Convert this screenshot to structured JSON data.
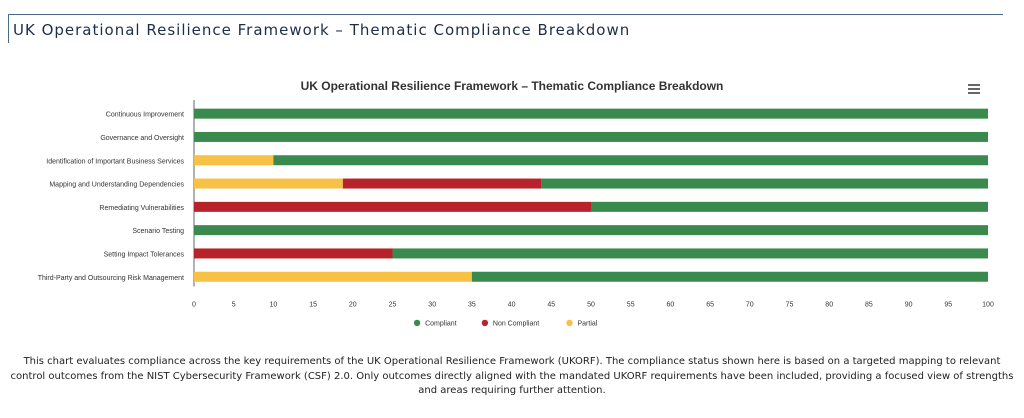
{
  "page": {
    "title": "UK Operational Resilience Framework – Thematic Compliance Breakdown",
    "description": "This chart evaluates compliance across the key requirements of the UK Operational Resilience Framework (UKORF). The compliance status shown here is based on a targeted mapping to relevant control outcomes from the NIST Cybersecurity Framework (CSF) 2.0. Only outcomes directly aligned with the mandated UKORF requirements have been included, providing a focused view of strengths and areas requiring further attention."
  },
  "chart_data": {
    "type": "bar",
    "orientation": "horizontal",
    "stacked": true,
    "title": "UK Operational Resilience Framework – Thematic Compliance Breakdown",
    "xlabel": "",
    "ylabel": "",
    "xlim": [
      0,
      100
    ],
    "x_ticks": [
      0,
      5,
      10,
      15,
      20,
      25,
      30,
      35,
      40,
      45,
      50,
      55,
      60,
      65,
      70,
      75,
      80,
      85,
      90,
      95,
      100
    ],
    "categories": [
      "Continuous Improvement",
      "Governance and Oversight",
      "Identification of Important Business Services",
      "Mapping and Understanding Dependencies",
      "Remediating Vulnerabilities",
      "Scenario Testing",
      "Setting Impact Tolerances",
      "Third-Party and Outsourcing Risk Management"
    ],
    "stack_order": [
      "Partial",
      "Non Compliant",
      "Compliant"
    ],
    "series": [
      {
        "name": "Compliant",
        "color": "#3a8a4e",
        "values": [
          100,
          100,
          90,
          56.25,
          50,
          100,
          75,
          65
        ]
      },
      {
        "name": "Non Compliant",
        "color": "#b8232b",
        "values": [
          0,
          0,
          0,
          25,
          50,
          0,
          25,
          0
        ]
      },
      {
        "name": "Partial",
        "color": "#f6c144",
        "values": [
          0,
          0,
          10,
          18.75,
          0,
          0,
          0,
          35
        ]
      }
    ],
    "legend_position": "bottom-center",
    "grid": false
  }
}
